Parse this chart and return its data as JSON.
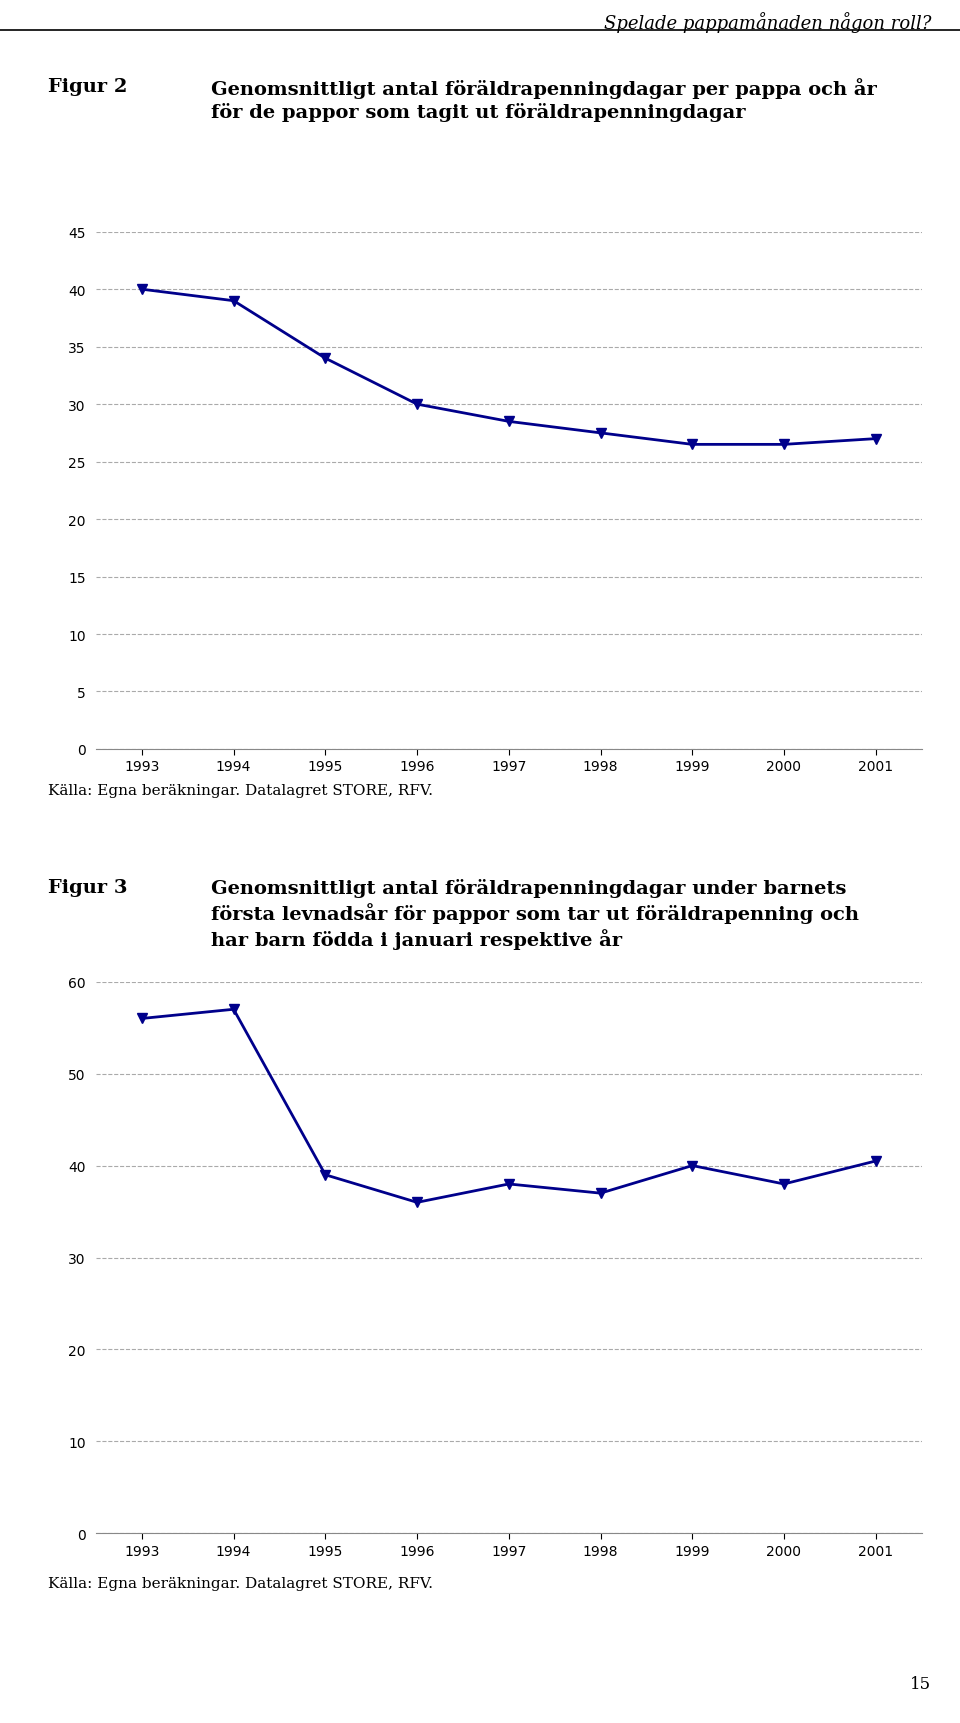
{
  "fig2": {
    "title_label": "Figur 2",
    "title_text": "Genomsnittligt antal föräldrapenningdagar per pappa och år\nför de pappor som tagit ut föräldrapenningdagar",
    "years": [
      1993,
      1994,
      1995,
      1996,
      1997,
      1998,
      1999,
      2000,
      2001
    ],
    "values": [
      40.0,
      39.0,
      34.0,
      30.0,
      28.5,
      27.5,
      26.5,
      26.5,
      27.0
    ],
    "ylim": [
      0,
      45
    ],
    "yticks": [
      0,
      5,
      10,
      15,
      20,
      25,
      30,
      35,
      40,
      45
    ]
  },
  "fig3": {
    "title_label": "Figur 3",
    "title_text": "Genomsnittligt antal föräldrapenningdagar under barnets\nförsta levnadsår för pappor som tar ut föräldrapenning och\nhar barn födda i januari respektive år",
    "years": [
      1993,
      1994,
      1995,
      1996,
      1997,
      1998,
      1999,
      2000,
      2001
    ],
    "values": [
      56.0,
      57.0,
      39.0,
      36.0,
      38.0,
      37.0,
      40.0,
      38.0,
      40.5
    ],
    "ylim": [
      0,
      60
    ],
    "yticks": [
      0,
      10,
      20,
      30,
      40,
      50,
      60
    ]
  },
  "source_text": "Källa: Egna beräkningar. Datalagret STORE, RFV.",
  "header_text": "Spelade pappamånaden någon roll?",
  "page_number": "15",
  "line_color": "#00008B",
  "marker": "v",
  "line_width": 2.0,
  "marker_size": 7,
  "grid_color": "#aaaaaa",
  "bg_color": "#ffffff",
  "tick_fontsize": 10,
  "title_fontsize": 14,
  "fig_label_fontsize": 14,
  "header_fontsize": 13,
  "source_fontsize": 11
}
